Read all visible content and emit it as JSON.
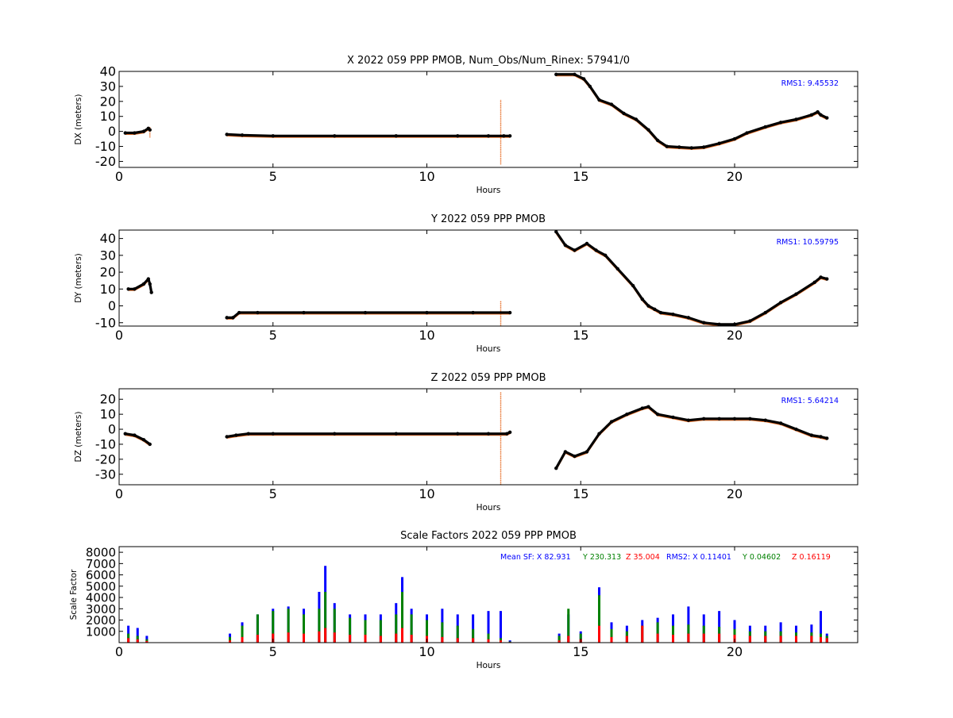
{
  "colors": {
    "black_trace": "#000000",
    "orange_trace": "#e8702a",
    "sf_x": "#0000ff",
    "sf_y": "#008000",
    "sf_z": "#ff0000",
    "rms_text": "#0000ff"
  },
  "chart_data": [
    {
      "type": "scatter",
      "title": "X 2022 059 PPP  PMOB, Num_Obs/Num_Rinex: 57941/0",
      "xlabel": "Hours",
      "ylabel": "DX (meters)",
      "xlim": [
        0,
        24
      ],
      "ylim": [
        -24,
        40
      ],
      "xticks": [
        0,
        5,
        10,
        15,
        20
      ],
      "yticks": [
        40,
        30,
        20,
        10,
        0,
        -10,
        -20
      ],
      "annotation": "RMS1:  9.45532",
      "series": [
        {
          "x": [
            0.2,
            0.5,
            0.8,
            0.95,
            1.0
          ],
          "y": [
            -1,
            -1,
            0,
            2,
            1
          ]
        },
        {
          "x": [
            3.5,
            4.0,
            5.0,
            7.0,
            9.0,
            11.0,
            12.0,
            12.5,
            12.7
          ],
          "y": [
            -2,
            -2.5,
            -3,
            -3,
            -3,
            -3,
            -3,
            -3,
            -3
          ]
        },
        {
          "x": [
            14.2,
            14.8,
            15.1,
            15.3,
            15.6,
            16.0,
            16.4,
            16.8,
            17.2,
            17.5,
            17.8,
            18.2,
            18.6,
            19.0,
            19.5,
            20.0,
            20.4,
            21.0,
            21.5,
            22.0,
            22.5,
            22.7,
            22.8,
            23.0
          ],
          "y": [
            38,
            38,
            35,
            30,
            21,
            18,
            12,
            8,
            1,
            -6,
            -10,
            -10.5,
            -11,
            -10.5,
            -8,
            -5,
            -1,
            3,
            6,
            8,
            11,
            13,
            11,
            9
          ]
        }
      ],
      "spikes": [
        {
          "x": 12.4,
          "y_min": -22,
          "y_max": 21
        },
        {
          "x": 1.0,
          "y_min": -4,
          "y_max": 3
        }
      ]
    },
    {
      "type": "scatter",
      "title": "Y 2022 059 PPP  PMOB",
      "xlabel": "Hours",
      "ylabel": "DY (meters)",
      "xlim": [
        0,
        24
      ],
      "ylim": [
        -12,
        45
      ],
      "xticks": [
        0,
        5,
        10,
        15,
        20
      ],
      "yticks": [
        40,
        30,
        20,
        10,
        0,
        -10
      ],
      "annotation": "RMS1: 10.59795",
      "series": [
        {
          "x": [
            0.3,
            0.5,
            0.8,
            0.95,
            1.0,
            1.05
          ],
          "y": [
            10,
            10,
            13,
            16,
            13,
            8
          ]
        },
        {
          "x": [
            3.5,
            3.7,
            3.9,
            4.5,
            6.0,
            8.0,
            10.0,
            11.5,
            12.7
          ],
          "y": [
            -7,
            -7,
            -4,
            -4,
            -4,
            -4,
            -4,
            -4,
            -4
          ]
        },
        {
          "x": [
            14.2,
            14.5,
            14.8,
            15.2,
            15.5,
            15.8,
            16.2,
            16.7,
            17.0,
            17.2,
            17.4,
            17.6,
            18.0,
            18.5,
            19.0,
            19.5,
            20.0,
            20.5,
            21.0,
            21.5,
            22.0,
            22.6,
            22.8,
            23.0
          ],
          "y": [
            44,
            36,
            33,
            37,
            33,
            30,
            22,
            12,
            4,
            0,
            -2,
            -4,
            -5,
            -7,
            -10,
            -11,
            -11,
            -9,
            -4,
            2,
            7,
            14,
            17,
            16
          ]
        }
      ],
      "spikes": [
        {
          "x": 12.4,
          "y_min": -12,
          "y_max": 3
        }
      ]
    },
    {
      "type": "scatter",
      "title": "Z 2022 059 PPP  PMOB",
      "xlabel": "Hours",
      "ylabel": "DZ (meters)",
      "xlim": [
        0,
        24
      ],
      "ylim": [
        -37,
        27
      ],
      "xticks": [
        0,
        5,
        10,
        15,
        20
      ],
      "yticks": [
        20,
        10,
        0,
        -10,
        -20,
        -30
      ],
      "annotation": "RMS1:  5.64214",
      "series": [
        {
          "x": [
            0.2,
            0.5,
            0.8,
            1.0
          ],
          "y": [
            -3,
            -4,
            -7,
            -10
          ]
        },
        {
          "x": [
            3.5,
            3.8,
            4.2,
            5.0,
            7.0,
            9.0,
            11.0,
            12.0,
            12.6,
            12.7
          ],
          "y": [
            -5,
            -4,
            -3,
            -3,
            -3,
            -3,
            -3,
            -3,
            -3,
            -2
          ]
        },
        {
          "x": [
            14.2,
            14.5,
            14.8,
            15.2,
            15.6,
            16.0,
            16.5,
            17.0,
            17.2,
            17.5,
            18.0,
            18.5,
            19.0,
            19.5,
            20.0,
            20.5,
            21.0,
            21.5,
            22.0,
            22.5,
            22.8,
            23.0
          ],
          "y": [
            -26,
            -15,
            -18,
            -15,
            -3,
            5,
            10,
            14,
            15,
            10,
            8,
            6,
            7,
            7,
            7,
            7,
            6,
            4,
            0,
            -4,
            -5,
            -6
          ]
        }
      ],
      "spikes": [
        {
          "x": 12.4,
          "y_min": -37,
          "y_max": 25
        }
      ]
    },
    {
      "type": "bar",
      "title": "Scale Factors 2022 059 PPP  PMOB",
      "xlabel": "Hours",
      "ylabel": "Scale Factor",
      "xlim": [
        0,
        24
      ],
      "ylim": [
        0,
        8500
      ],
      "xticks": [
        0,
        5,
        10,
        15,
        20
      ],
      "yticks": [
        8000,
        7000,
        6000,
        5000,
        4000,
        3000,
        2000,
        1000
      ],
      "annotation": {
        "prefix": "Mean SF: X  82.931",
        "y_part": "Y 230.313",
        "z_part": "Z  35.004",
        "rms_part": "RMS2: X  0.11401",
        "rms_y": "Y  0.04602",
        "rms_z": "Z  0.16119"
      },
      "series": [
        {
          "name": "X",
          "color": "#0000ff",
          "x": [
            0.3,
            0.6,
            0.9,
            3.6,
            4.0,
            4.5,
            5.0,
            5.5,
            6.0,
            6.5,
            6.7,
            7.0,
            7.5,
            8.0,
            8.5,
            9.0,
            9.2,
            9.5,
            10.0,
            10.5,
            11.0,
            11.5,
            12.0,
            12.4,
            12.7,
            14.3,
            14.6,
            15.0,
            15.6,
            16.0,
            16.5,
            17.0,
            17.5,
            18.0,
            18.5,
            19.0,
            19.5,
            20.0,
            20.5,
            21.0,
            21.5,
            22.0,
            22.5,
            22.8,
            23.0
          ],
          "y": [
            1500,
            1300,
            600,
            800,
            1800,
            2500,
            3000,
            3200,
            3000,
            4500,
            6800,
            3500,
            2500,
            2500,
            2500,
            3500,
            5800,
            3000,
            2500,
            3000,
            2500,
            2500,
            2800,
            2800,
            200,
            800,
            2500,
            1000,
            4900,
            1800,
            1500,
            2000,
            2200,
            2500,
            3200,
            2500,
            2800,
            2000,
            1500,
            1500,
            1800,
            1500,
            1600,
            2800,
            800
          ]
        },
        {
          "name": "Y",
          "color": "#008000",
          "x": [
            0.3,
            0.6,
            0.9,
            3.6,
            4.0,
            4.5,
            5.0,
            5.5,
            6.0,
            6.5,
            6.7,
            7.0,
            7.5,
            8.0,
            8.5,
            9.0,
            9.2,
            9.5,
            10.0,
            10.5,
            11.0,
            11.5,
            12.0,
            12.4,
            12.7,
            14.3,
            14.6,
            15.0,
            15.6,
            16.0,
            16.5,
            17.0,
            17.5,
            18.0,
            18.5,
            19.0,
            19.5,
            20.0,
            20.5,
            21.0,
            21.5,
            22.0,
            22.5,
            22.8,
            23.0
          ],
          "y": [
            800,
            600,
            300,
            500,
            1500,
            2500,
            2800,
            3000,
            2500,
            3000,
            4500,
            3000,
            2200,
            2000,
            2000,
            2500,
            4500,
            2500,
            2000,
            1800,
            1500,
            1200,
            800,
            400,
            100,
            600,
            3000,
            800,
            4200,
            1200,
            1000,
            1500,
            1800,
            1500,
            1600,
            1500,
            1400,
            1200,
            1000,
            1000,
            1000,
            900,
            900,
            800,
            600
          ]
        },
        {
          "name": "Z",
          "color": "#ff0000",
          "x": [
            0.3,
            0.6,
            0.9,
            3.6,
            4.0,
            4.5,
            5.0,
            5.5,
            6.0,
            6.5,
            6.7,
            7.0,
            7.5,
            8.0,
            8.5,
            9.0,
            9.2,
            9.5,
            10.0,
            10.5,
            11.0,
            11.5,
            12.0,
            12.4,
            12.7,
            14.3,
            14.6,
            15.0,
            15.6,
            16.0,
            16.5,
            17.0,
            17.5,
            18.0,
            18.5,
            19.0,
            19.5,
            20.0,
            20.5,
            21.0,
            21.5,
            22.0,
            22.5,
            22.8,
            23.0
          ],
          "y": [
            400,
            300,
            150,
            200,
            500,
            700,
            800,
            900,
            800,
            1000,
            1300,
            900,
            700,
            700,
            600,
            800,
            1300,
            700,
            600,
            500,
            400,
            400,
            300,
            200,
            50,
            200,
            600,
            300,
            1500,
            500,
            600,
            1500,
            800,
            700,
            800,
            800,
            800,
            700,
            600,
            600,
            600,
            600,
            600,
            500,
            400
          ]
        }
      ]
    }
  ]
}
